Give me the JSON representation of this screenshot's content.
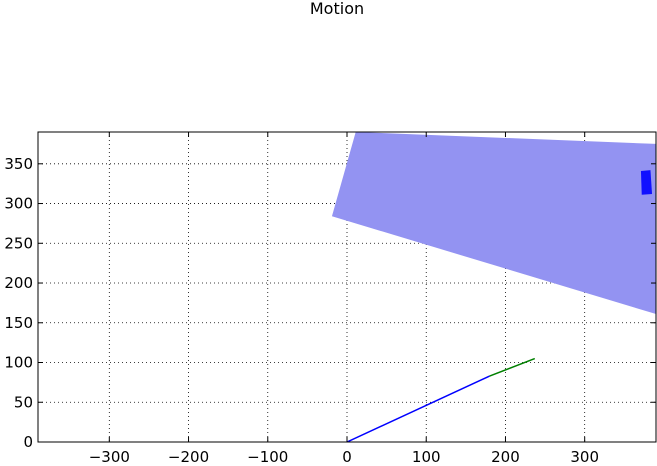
{
  "chart_data": {
    "type": "line",
    "title": "Motion",
    "xlabel": "",
    "ylabel": "",
    "xlim": [
      -390,
      390
    ],
    "ylim": [
      0,
      390
    ],
    "xticks": [
      -300,
      -200,
      -100,
      0,
      100,
      200,
      300
    ],
    "yticks": [
      0,
      50,
      100,
      150,
      200,
      250,
      300,
      350
    ],
    "grid": true,
    "colors": {
      "blue_line": "#0000ff",
      "green_line": "#008000",
      "region_fill": "#9393f2",
      "small_marker": "#1010ff"
    },
    "series": [
      {
        "points": [
          [
            0,
            0
          ],
          [
            180,
            83
          ]
        ],
        "color": "blue_line"
      },
      {
        "points": [
          [
            180,
            83
          ],
          [
            237,
            105
          ]
        ],
        "color": "green_line"
      }
    ],
    "region": {
      "polygon": [
        [
          -19,
          284
        ],
        [
          11,
          390
        ],
        [
          390,
          375
        ],
        [
          390,
          161
        ]
      ]
    },
    "marker": {
      "polygon": [
        [
          371,
          341
        ],
        [
          383,
          342
        ],
        [
          385,
          312
        ],
        [
          372,
          311
        ]
      ]
    }
  }
}
